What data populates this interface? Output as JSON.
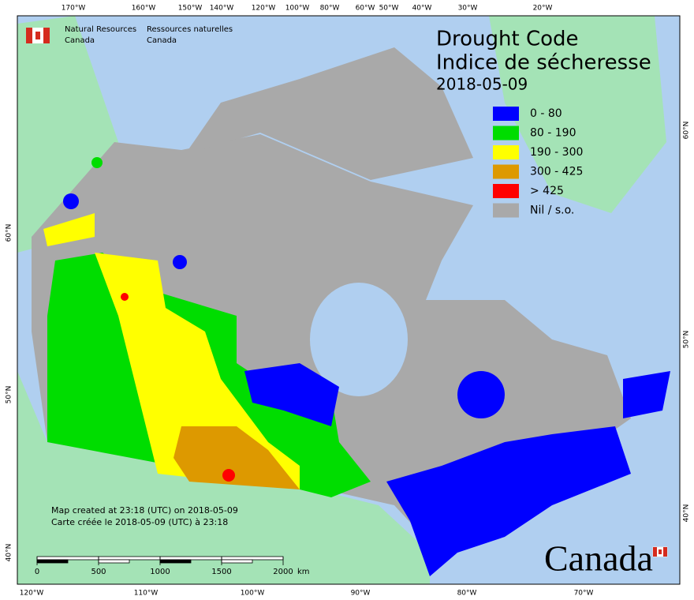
{
  "header": {
    "agency_en": [
      "Natural Resources",
      "Canada"
    ],
    "agency_fr": [
      "Ressources naturelles",
      "Canada"
    ]
  },
  "title": {
    "en": "Drought Code",
    "fr": "Indice de sécheresse",
    "date": "2018-05-09"
  },
  "legend": [
    {
      "label": "0 - 80",
      "color": "#0000ff"
    },
    {
      "label": "80 - 190",
      "color": "#00dd00"
    },
    {
      "label": "190 - 300",
      "color": "#ffff00"
    },
    {
      "label": "300 - 425",
      "color": "#dd9900"
    },
    {
      "label": "> 425",
      "color": "#ff0000"
    },
    {
      "label": "Nil / s.o.",
      "color": "#a9a9a9"
    }
  ],
  "graticule": {
    "top": [
      "170°W",
      "160°W",
      "150°W",
      "140°W",
      "120°W",
      "100°W",
      "80°W",
      "60°W",
      "50°W",
      "40°W",
      "30°W",
      "20°W"
    ],
    "bottom": [
      "120°W",
      "110°W",
      "100°W",
      "90°W",
      "80°W",
      "70°W"
    ],
    "left": [
      "60°N",
      "50°N",
      "40°N"
    ],
    "right": [
      "60°N",
      "50°N",
      "40°N"
    ]
  },
  "notes": [
    "Map created at 23:18 (UTC) on 2018-05-09",
    "Carte créée le 2018-05-09 (UTC) à 23:18"
  ],
  "scale_bar": {
    "ticks": [
      0,
      500,
      1000,
      1500,
      2000
    ],
    "unit": "km"
  },
  "wordmark": "Canada"
}
